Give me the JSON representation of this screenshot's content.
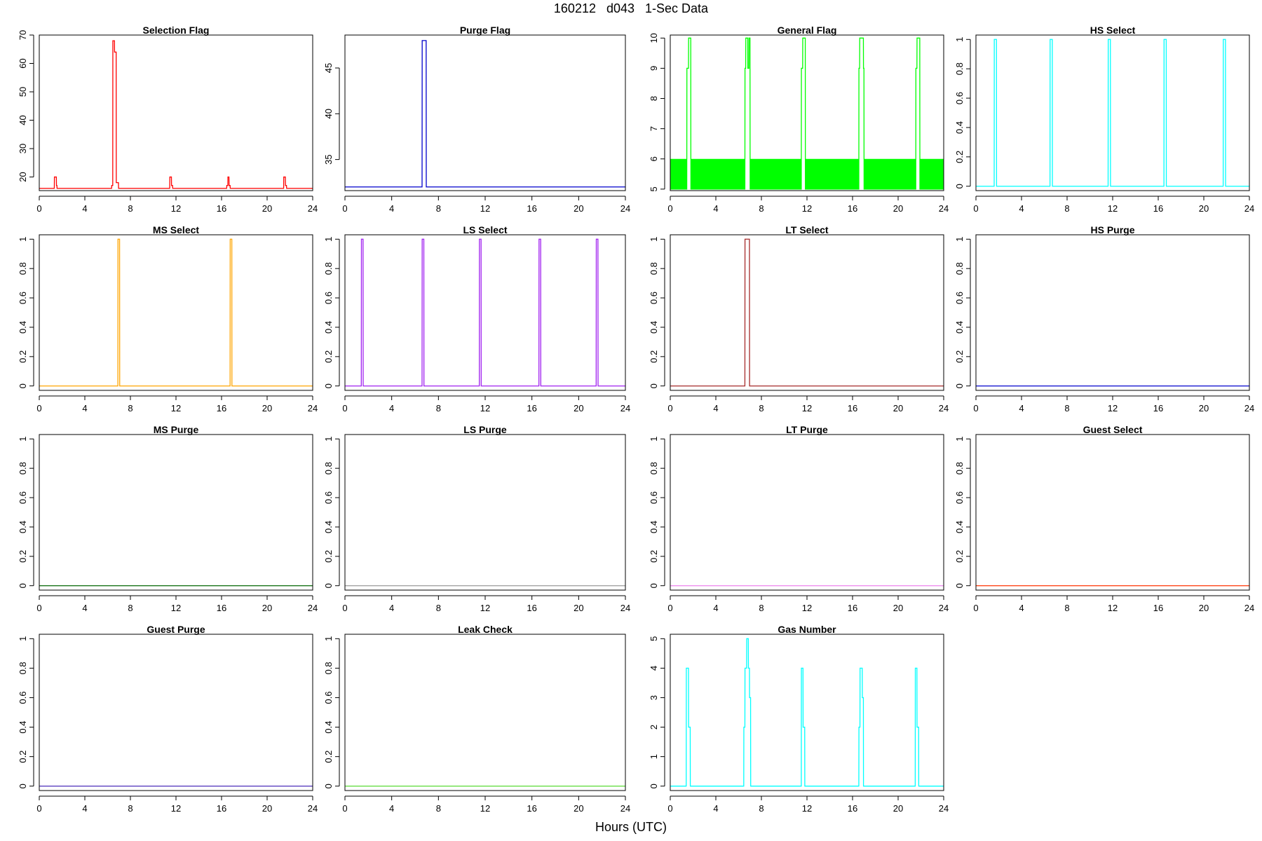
{
  "figure": {
    "title": "160212   d043   1-Sec Data",
    "xlabel": "Hours (UTC)"
  },
  "chart_data": [
    {
      "type": "line",
      "title": "Selection Flag",
      "color": "#ff0000",
      "xlim": [
        0,
        24
      ],
      "ylim": [
        15.2,
        70
      ],
      "xticks": [
        0,
        4,
        8,
        12,
        16,
        20,
        24
      ],
      "yticks": [
        20,
        30,
        40,
        50,
        60,
        70
      ],
      "x": [
        0,
        1.32,
        1.33,
        1.5,
        1.51,
        1.55,
        1.56,
        1.63,
        1.64,
        6.35,
        6.36,
        6.45,
        6.46,
        6.6,
        6.61,
        6.75,
        6.76,
        6.95,
        6.96,
        7.05,
        7.06,
        11.45,
        11.46,
        11.6,
        11.61,
        11.7,
        11.71,
        16.45,
        16.46,
        16.55,
        16.56,
        16.65,
        16.66,
        16.75,
        16.76,
        21.45,
        21.46,
        21.6,
        21.61,
        21.7,
        21.71,
        24
      ],
      "y": [
        16,
        16,
        20,
        20,
        17,
        17,
        16,
        16,
        16,
        16,
        17,
        17,
        68,
        68,
        64,
        64,
        18,
        18,
        16,
        16,
        16,
        16,
        20,
        20,
        17,
        17,
        16,
        16,
        17,
        17,
        20,
        20,
        17,
        17,
        16,
        16,
        20,
        20,
        17,
        17,
        16,
        16
      ]
    },
    {
      "type": "line",
      "title": "Purge Flag",
      "color": "#0000cc",
      "xlim": [
        0,
        24
      ],
      "ylim": [
        31.6,
        48.6
      ],
      "xticks": [
        0,
        4,
        8,
        12,
        16,
        20,
        24
      ],
      "yticks": [
        35,
        40,
        45
      ],
      "x": [
        0,
        6.6,
        6.61,
        6.95,
        6.96,
        24
      ],
      "y": [
        32,
        32,
        48,
        48,
        32,
        32
      ]
    },
    {
      "type": "line",
      "title": "General Flag",
      "color": "#00ff00",
      "xlim": [
        0,
        24
      ],
      "ylim": [
        4.95,
        10.1
      ],
      "xticks": [
        0,
        4,
        8,
        12,
        16,
        20,
        24
      ],
      "yticks": [
        5,
        6,
        7,
        8,
        9,
        10
      ],
      "bands": [
        [
          0,
          1.45
        ],
        [
          1.8,
          6.55
        ],
        [
          7.0,
          11.5
        ],
        [
          11.85,
          16.55
        ],
        [
          17.0,
          21.55
        ],
        [
          21.9,
          24
        ]
      ],
      "band_range": [
        5,
        6
      ],
      "x": [
        0,
        1.45,
        1.46,
        1.6,
        1.61,
        1.8,
        1.81,
        6.55,
        6.56,
        6.62,
        6.63,
        6.8,
        6.81,
        6.9,
        6.91,
        7.0,
        7.01,
        11.5,
        11.51,
        11.62,
        11.63,
        11.85,
        11.86,
        16.55,
        16.56,
        16.62,
        16.63,
        16.95,
        16.96,
        17.0,
        17.01,
        21.55,
        21.56,
        21.65,
        21.66,
        21.9,
        21.91,
        24
      ],
      "y": [
        5,
        5,
        9,
        9,
        10,
        10,
        5,
        5,
        9,
        9,
        10,
        10,
        9,
        9,
        10,
        10,
        5,
        5,
        9,
        9,
        10,
        10,
        5,
        5,
        9,
        9,
        10,
        10,
        9,
        9,
        5,
        5,
        9,
        9,
        10,
        10,
        5,
        5
      ]
    },
    {
      "type": "line",
      "title": "HS Select",
      "color": "#00ffff",
      "xlim": [
        0,
        24
      ],
      "ylim": [
        -0.03,
        1.03
      ],
      "xticks": [
        0,
        4,
        8,
        12,
        16,
        20,
        24
      ],
      "yticks": [
        0,
        0.2,
        0.4,
        0.6,
        0.8,
        1
      ],
      "x": [
        0,
        1.6,
        1.61,
        1.8,
        1.81,
        6.5,
        6.51,
        6.7,
        6.71,
        11.6,
        11.61,
        11.8,
        11.81,
        16.5,
        16.51,
        16.7,
        16.71,
        21.7,
        21.71,
        21.9,
        21.91,
        24
      ],
      "y": [
        0,
        0,
        1,
        1,
        0,
        0,
        1,
        1,
        0,
        0,
        1,
        1,
        0,
        0,
        1,
        1,
        0,
        0,
        1,
        1,
        0,
        0
      ]
    },
    {
      "type": "line",
      "title": "MS Select",
      "color": "#ffa500",
      "xlim": [
        0,
        24
      ],
      "ylim": [
        -0.03,
        1.03
      ],
      "xticks": [
        0,
        4,
        8,
        12,
        16,
        20,
        24
      ],
      "yticks": [
        0,
        0.2,
        0.4,
        0.6,
        0.8,
        1
      ],
      "x": [
        0,
        6.9,
        6.91,
        7.05,
        7.06,
        16.75,
        16.76,
        16.9,
        16.91,
        24
      ],
      "y": [
        0,
        0,
        1,
        1,
        0,
        0,
        1,
        1,
        0,
        0
      ]
    },
    {
      "type": "line",
      "title": "LS Select",
      "color": "#a020f0",
      "xlim": [
        0,
        24
      ],
      "ylim": [
        -0.03,
        1.03
      ],
      "xticks": [
        0,
        4,
        8,
        12,
        16,
        20,
        24
      ],
      "yticks": [
        0,
        0.2,
        0.4,
        0.6,
        0.8,
        1
      ],
      "x": [
        0,
        1.4,
        1.41,
        1.55,
        1.56,
        6.6,
        6.61,
        6.75,
        6.76,
        11.5,
        11.51,
        11.65,
        11.66,
        16.6,
        16.61,
        16.75,
        16.76,
        21.5,
        21.51,
        21.65,
        21.66,
        24
      ],
      "y": [
        0,
        0,
        1,
        1,
        0,
        0,
        1,
        1,
        0,
        0,
        1,
        1,
        0,
        0,
        1,
        1,
        0,
        0,
        1,
        1,
        0,
        0
      ]
    },
    {
      "type": "line",
      "title": "LT Select",
      "color": "#a52a2a",
      "xlim": [
        0,
        24
      ],
      "ylim": [
        -0.03,
        1.03
      ],
      "xticks": [
        0,
        4,
        8,
        12,
        16,
        20,
        24
      ],
      "yticks": [
        0,
        0.2,
        0.4,
        0.6,
        0.8,
        1
      ],
      "x": [
        0,
        6.55,
        6.56,
        6.95,
        6.96,
        24
      ],
      "y": [
        0,
        0,
        1,
        1,
        0,
        0
      ]
    },
    {
      "type": "line",
      "title": "HS Purge",
      "color": "#0000cc",
      "xlim": [
        0,
        24
      ],
      "ylim": [
        -0.03,
        1.03
      ],
      "xticks": [
        0,
        4,
        8,
        12,
        16,
        20,
        24
      ],
      "yticks": [
        0,
        0.2,
        0.4,
        0.6,
        0.8,
        1
      ],
      "x": [
        0,
        24
      ],
      "y": [
        0,
        0
      ]
    },
    {
      "type": "line",
      "title": "MS Purge",
      "color": "#006400",
      "xlim": [
        0,
        24
      ],
      "ylim": [
        -0.03,
        1.03
      ],
      "xticks": [
        0,
        4,
        8,
        12,
        16,
        20,
        24
      ],
      "yticks": [
        0,
        0.2,
        0.4,
        0.6,
        0.8,
        1
      ],
      "x": [
        0,
        24
      ],
      "y": [
        0,
        0
      ]
    },
    {
      "type": "line",
      "title": "LS Purge",
      "color": "#999999",
      "xlim": [
        0,
        24
      ],
      "ylim": [
        -0.03,
        1.03
      ],
      "xticks": [
        0,
        4,
        8,
        12,
        16,
        20,
        24
      ],
      "yticks": [
        0,
        0.2,
        0.4,
        0.6,
        0.8,
        1
      ],
      "x": [
        0,
        24
      ],
      "y": [
        0,
        0
      ]
    },
    {
      "type": "line",
      "title": "LT Purge",
      "color": "#ee82ee",
      "xlim": [
        0,
        24
      ],
      "ylim": [
        -0.03,
        1.03
      ],
      "xticks": [
        0,
        4,
        8,
        12,
        16,
        20,
        24
      ],
      "yticks": [
        0,
        0.2,
        0.4,
        0.6,
        0.8,
        1
      ],
      "x": [
        0,
        24
      ],
      "y": [
        0,
        0
      ]
    },
    {
      "type": "line",
      "title": "Guest Select",
      "color": "#ff3300",
      "xlim": [
        0,
        24
      ],
      "ylim": [
        -0.03,
        1.03
      ],
      "xticks": [
        0,
        4,
        8,
        12,
        16,
        20,
        24
      ],
      "yticks": [
        0,
        0.2,
        0.4,
        0.6,
        0.8,
        1
      ],
      "x": [
        0,
        24
      ],
      "y": [
        0,
        0
      ]
    },
    {
      "type": "line",
      "title": "Guest Purge",
      "color": "#5a3fbf",
      "xlim": [
        0,
        24
      ],
      "ylim": [
        -0.03,
        1.03
      ],
      "xticks": [
        0,
        4,
        8,
        12,
        16,
        20,
        24
      ],
      "yticks": [
        0,
        0.2,
        0.4,
        0.6,
        0.8,
        1
      ],
      "x": [
        0,
        24
      ],
      "y": [
        0,
        0
      ]
    },
    {
      "type": "line",
      "title": "Leak Check",
      "color": "#66dd44",
      "xlim": [
        0,
        24
      ],
      "ylim": [
        -0.03,
        1.03
      ],
      "xticks": [
        0,
        4,
        8,
        12,
        16,
        20,
        24
      ],
      "yticks": [
        0,
        0.2,
        0.4,
        0.6,
        0.8,
        1
      ],
      "x": [
        0,
        24
      ],
      "y": [
        0,
        0
      ]
    },
    {
      "type": "line",
      "title": "Gas Number",
      "color": "#00ffff",
      "xlim": [
        0,
        24
      ],
      "ylim": [
        -0.15,
        5.15
      ],
      "xticks": [
        0,
        4,
        8,
        12,
        16,
        20,
        24
      ],
      "yticks": [
        0,
        1,
        2,
        3,
        4,
        5
      ],
      "x": [
        0,
        1.4,
        1.41,
        1.6,
        1.61,
        1.75,
        1.76,
        6.45,
        6.46,
        6.55,
        6.56,
        6.7,
        6.71,
        6.85,
        6.86,
        6.95,
        6.96,
        7.05,
        7.06,
        11.5,
        11.51,
        11.65,
        11.66,
        11.8,
        11.81,
        16.55,
        16.56,
        16.65,
        16.66,
        16.85,
        16.86,
        16.95,
        16.96,
        21.5,
        21.51,
        21.65,
        21.66,
        21.8,
        21.81,
        24
      ],
      "y": [
        0,
        0,
        4,
        4,
        2,
        2,
        0,
        0,
        2,
        2,
        4,
        4,
        5,
        5,
        4,
        4,
        3,
        3,
        0,
        0,
        4,
        4,
        2,
        2,
        0,
        0,
        2,
        2,
        4,
        4,
        3,
        3,
        0,
        0,
        4,
        4,
        2,
        2,
        0,
        0
      ]
    }
  ]
}
